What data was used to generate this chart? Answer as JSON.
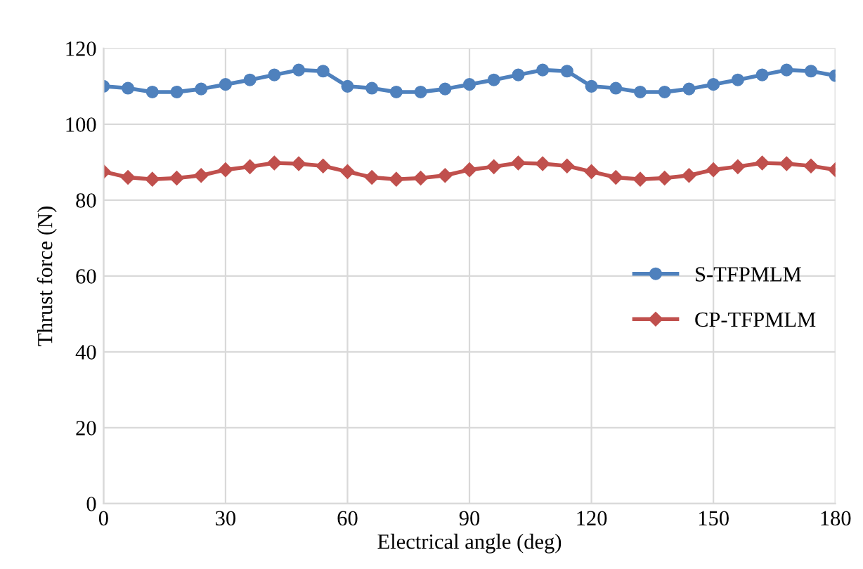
{
  "chart_data": {
    "type": "line",
    "xlabel": "Electrical angle (deg)",
    "ylabel": "Thrust force (N)",
    "x": [
      0,
      6,
      12,
      18,
      24,
      30,
      36,
      42,
      48,
      54,
      60,
      66,
      72,
      78,
      84,
      90,
      96,
      102,
      108,
      114,
      120,
      126,
      132,
      138,
      144,
      150,
      156,
      162,
      168,
      174,
      180
    ],
    "series": [
      {
        "name": "S-TFPMLM",
        "color": "#4f81bd",
        "marker": "circle",
        "values": [
          110,
          109.5,
          108.5,
          108.5,
          109.3,
          110.5,
          111.7,
          113,
          114.3,
          114,
          110,
          109.5,
          108.5,
          108.5,
          109.3,
          110.5,
          111.7,
          113,
          114.3,
          114,
          110,
          109.5,
          108.5,
          108.5,
          109.3,
          110.5,
          111.7,
          113,
          114.3,
          114,
          112.8
        ]
      },
      {
        "name": "CP-TFPMLM",
        "color": "#c0504d",
        "marker": "diamond",
        "values": [
          87.5,
          86,
          85.5,
          85.8,
          86.5,
          88,
          88.8,
          89.8,
          89.6,
          89,
          87.5,
          86,
          85.5,
          85.8,
          86.5,
          88,
          88.8,
          89.8,
          89.6,
          89,
          87.5,
          86,
          85.5,
          85.8,
          86.5,
          88,
          88.8,
          89.8,
          89.6,
          89,
          88
        ]
      }
    ],
    "xlim": [
      0,
      180
    ],
    "xticks": [
      0,
      30,
      60,
      90,
      120,
      150,
      180
    ],
    "ylim": [
      0,
      120
    ],
    "yticks": [
      0,
      20,
      40,
      60,
      80,
      100,
      120
    ],
    "grid": true,
    "legend": "right",
    "line_style": "solid"
  }
}
